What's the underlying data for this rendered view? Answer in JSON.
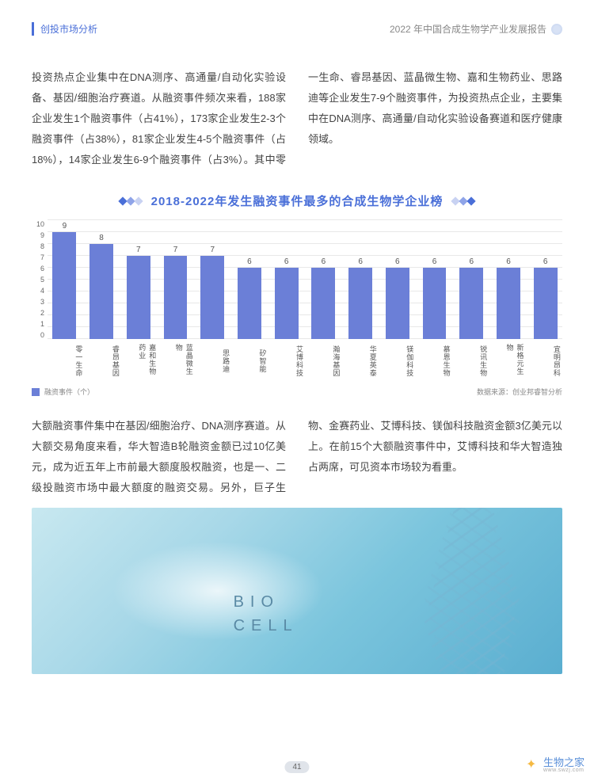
{
  "header": {
    "left": "创投市场分析",
    "right": "2022 年中国合成生物学产业发展报告"
  },
  "paragraph1": "投资热点企业集中在DNA测序、高通量/自动化实验设备、基因/细胞治疗赛道。从融资事件频次来看，188家企业发生1个融资事件（占41%），173家企业发生2-3个融资事件（占38%），81家企业发生4-5个融资事件（占18%），14家企业发生6-9个融资事件（占3%）。其中零一生命、睿昂基因、蓝晶微生物、嘉和生物药业、思路迪等企业发生7-9个融资事件，为投资热点企业，主要集中在DNA测序、高通量/自动化实验设备赛道和医疗健康领域。",
  "chart": {
    "type": "bar",
    "title": "2018-2022年发生融资事件最多的合成生物学企业榜",
    "categories": [
      "零一生命",
      "睿昂基因",
      "嘉和生物药业",
      "蓝晶微生物",
      "思路迪",
      "矽智能",
      "艾博科技",
      "瀚海基因",
      "华夏英泰",
      "镁伽科技",
      "慕恩生物",
      "锐讯生物",
      "新格元生物",
      "宜明昂科"
    ],
    "values": [
      9,
      8,
      7,
      7,
      7,
      6,
      6,
      6,
      6,
      6,
      6,
      6,
      6,
      6
    ],
    "bar_color": "#6b7fd7",
    "ylim": [
      0,
      10
    ],
    "ytick_step": 1,
    "grid_color": "#e8e8e8",
    "background_color": "#ffffff",
    "label_fontsize": 9,
    "title_fontsize": 15,
    "title_color": "#4a6fd8",
    "bar_width": 0.7,
    "diamond_colors": [
      "#4a6fd8",
      "#8fa4e8",
      "#c8d2f2"
    ]
  },
  "legend": {
    "label": "融资事件（个）",
    "swatch_color": "#6b7fd7",
    "source": "数据来源：创业邦睿智分析"
  },
  "paragraph2": "大额融资事件集中在基因/细胞治疗、DNA测序赛道。从大额交易角度来看，华大智造B轮融资金额已过10亿美元，成为近五年上市前最大额度股权融资，也是一、二级投融资市场中最大额度的融资交易。另外，巨子生物、金赛药业、艾博科技、镁伽科技融资金额3亿美元以上。在前15个大额融资事件中，艾博科技和华大智造独占两席，可见资本市场较为看重。",
  "bio_image": {
    "line1": "BIO",
    "line2": "CELL"
  },
  "page_number": "41",
  "watermark": {
    "text": "生物之家",
    "sub": "www.swzj.com"
  }
}
